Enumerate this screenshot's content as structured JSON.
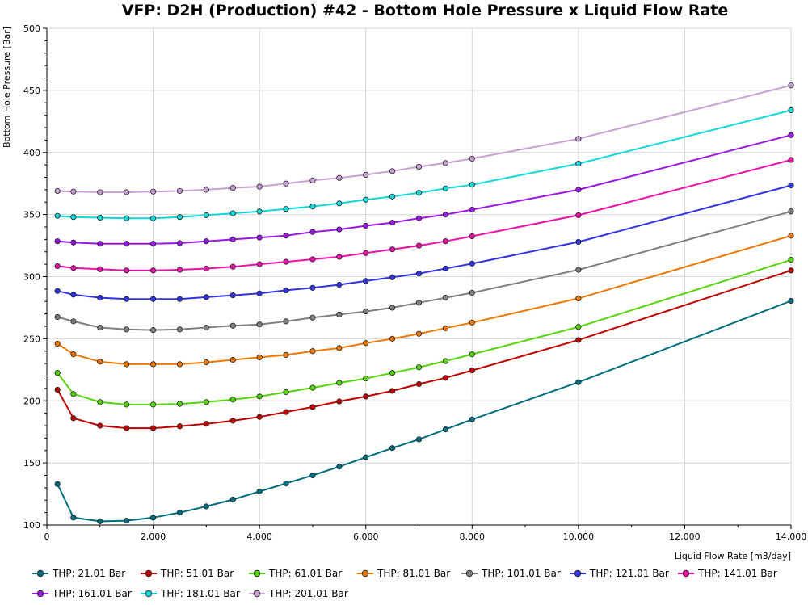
{
  "chart_data": {
    "type": "line",
    "title": "VFP: D2H (Production) #42 - Bottom Hole Pressure x Liquid Flow Rate",
    "xlabel": "Liquid Flow Rate [m3/day]",
    "ylabel": "Bottom Hole Pressure [Bar]",
    "xlim": [
      0,
      14000
    ],
    "ylim": [
      100,
      500
    ],
    "x_ticks": [
      0,
      2000,
      4000,
      6000,
      8000,
      10000,
      12000,
      14000
    ],
    "x_tick_labels": [
      "0",
      "2,000",
      "4,000",
      "6,000",
      "8,000",
      "10,000",
      "12,000",
      "14,000"
    ],
    "y_ticks": [
      100,
      150,
      200,
      250,
      300,
      350,
      400,
      450,
      500
    ],
    "y_tick_labels": [
      "100",
      "150",
      "200",
      "250",
      "300",
      "350",
      "400",
      "450",
      "500"
    ],
    "grid": true,
    "legend_position": "bottom",
    "x": [
      200,
      500,
      1000,
      1500,
      2000,
      2500,
      3000,
      3500,
      4000,
      4500,
      5000,
      5500,
      6000,
      6500,
      7000,
      7500,
      8000,
      10000,
      14000
    ],
    "series": [
      {
        "name": "THP: 21.01 Bar",
        "color": "#006e7f",
        "values": [
          133,
          106,
          103,
          103.5,
          106,
          110,
          115,
          120.5,
          127,
          133.5,
          140,
          147,
          154.5,
          162,
          169,
          177,
          185,
          215,
          280.5
        ]
      },
      {
        "name": "THP: 51.01 Bar",
        "color": "#c00000",
        "values": [
          209,
          186,
          180,
          178,
          178,
          179.5,
          181.5,
          184,
          187,
          191,
          195,
          199.5,
          203.5,
          208,
          213.5,
          218.5,
          224.5,
          249,
          305
        ]
      },
      {
        "name": "THP: 61.01 Bar",
        "color": "#55d40a",
        "values": [
          222.5,
          205.5,
          199,
          197,
          197,
          197.5,
          199,
          201,
          203.5,
          207,
          210.5,
          214.5,
          218,
          222.5,
          227,
          232,
          237.5,
          259.5,
          313.5
        ]
      },
      {
        "name": "THP: 81.01 Bar",
        "color": "#ee7700",
        "values": [
          246,
          237.5,
          231.5,
          229.5,
          229.5,
          229.5,
          231,
          233,
          235,
          237,
          240,
          242.5,
          246.5,
          250,
          254,
          258.5,
          263,
          282.5,
          333
        ]
      },
      {
        "name": "THP: 101.01 Bar",
        "color": "#808080",
        "values": [
          267.5,
          264,
          259,
          257.5,
          257,
          257.5,
          259,
          260.5,
          261.5,
          264,
          267,
          269.5,
          272,
          275,
          279,
          283,
          287,
          305.5,
          352.5
        ]
      },
      {
        "name": "THP: 121.01 Bar",
        "color": "#3333e6",
        "values": [
          288.5,
          285.5,
          283,
          282,
          282,
          282,
          283.5,
          285,
          286.5,
          289,
          291,
          293.5,
          296.5,
          299.5,
          302.5,
          306.5,
          310.5,
          328,
          373.5
        ]
      },
      {
        "name": "THP: 141.01 Bar",
        "color": "#ee11a8",
        "values": [
          308.5,
          307,
          306,
          305,
          305,
          305.5,
          306.5,
          308,
          310,
          312,
          314,
          316,
          319,
          322,
          325,
          328.5,
          332.5,
          349.5,
          394
        ]
      },
      {
        "name": "THP: 161.01 Bar",
        "color": "#9a18e6",
        "values": [
          328.5,
          327.5,
          326.5,
          326.5,
          326.5,
          327,
          328.5,
          330,
          331.5,
          333,
          336,
          338,
          341,
          343.5,
          347,
          350,
          354,
          370,
          414
        ]
      },
      {
        "name": "THP: 181.01 Bar",
        "color": "#11d8d8",
        "values": [
          349,
          348,
          347.5,
          347,
          347,
          348,
          349.5,
          351,
          352.5,
          354.5,
          356.5,
          359,
          362,
          364.5,
          367.5,
          371,
          374,
          391,
          434
        ]
      },
      {
        "name": "THP: 201.01 Bar",
        "color": "#c8a0d4",
        "values": [
          369,
          368.5,
          368,
          368,
          368.5,
          369,
          370,
          371.5,
          372.5,
          375,
          377.5,
          379.5,
          382,
          385,
          388.5,
          391.5,
          395,
          411,
          454
        ]
      }
    ]
  }
}
